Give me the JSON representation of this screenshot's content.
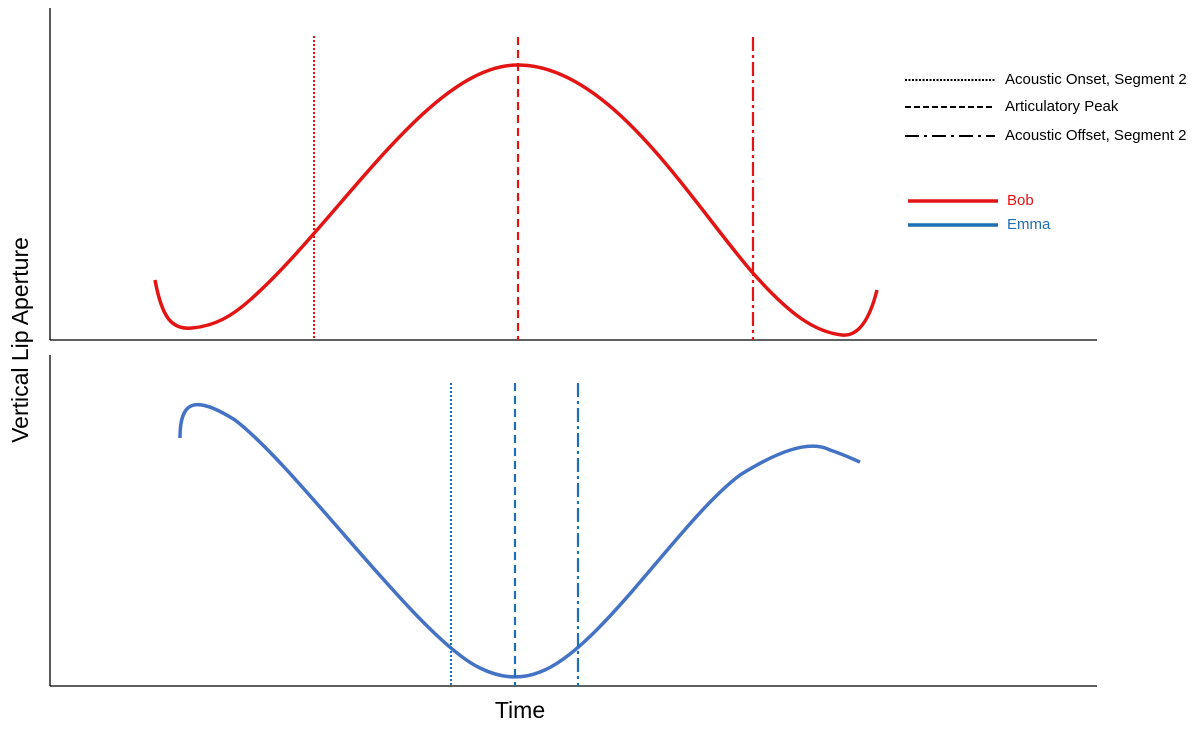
{
  "axes": {
    "y_label": "Vertical Lip Aperture",
    "x_label": "Time"
  },
  "legend": {
    "line_styles": [
      "Acoustic Onset, Segment 2",
      "Articulatory Peak",
      "Acoustic Offset, Segment 2"
    ],
    "speakers": [
      "Bob",
      "Emma"
    ]
  }
}
